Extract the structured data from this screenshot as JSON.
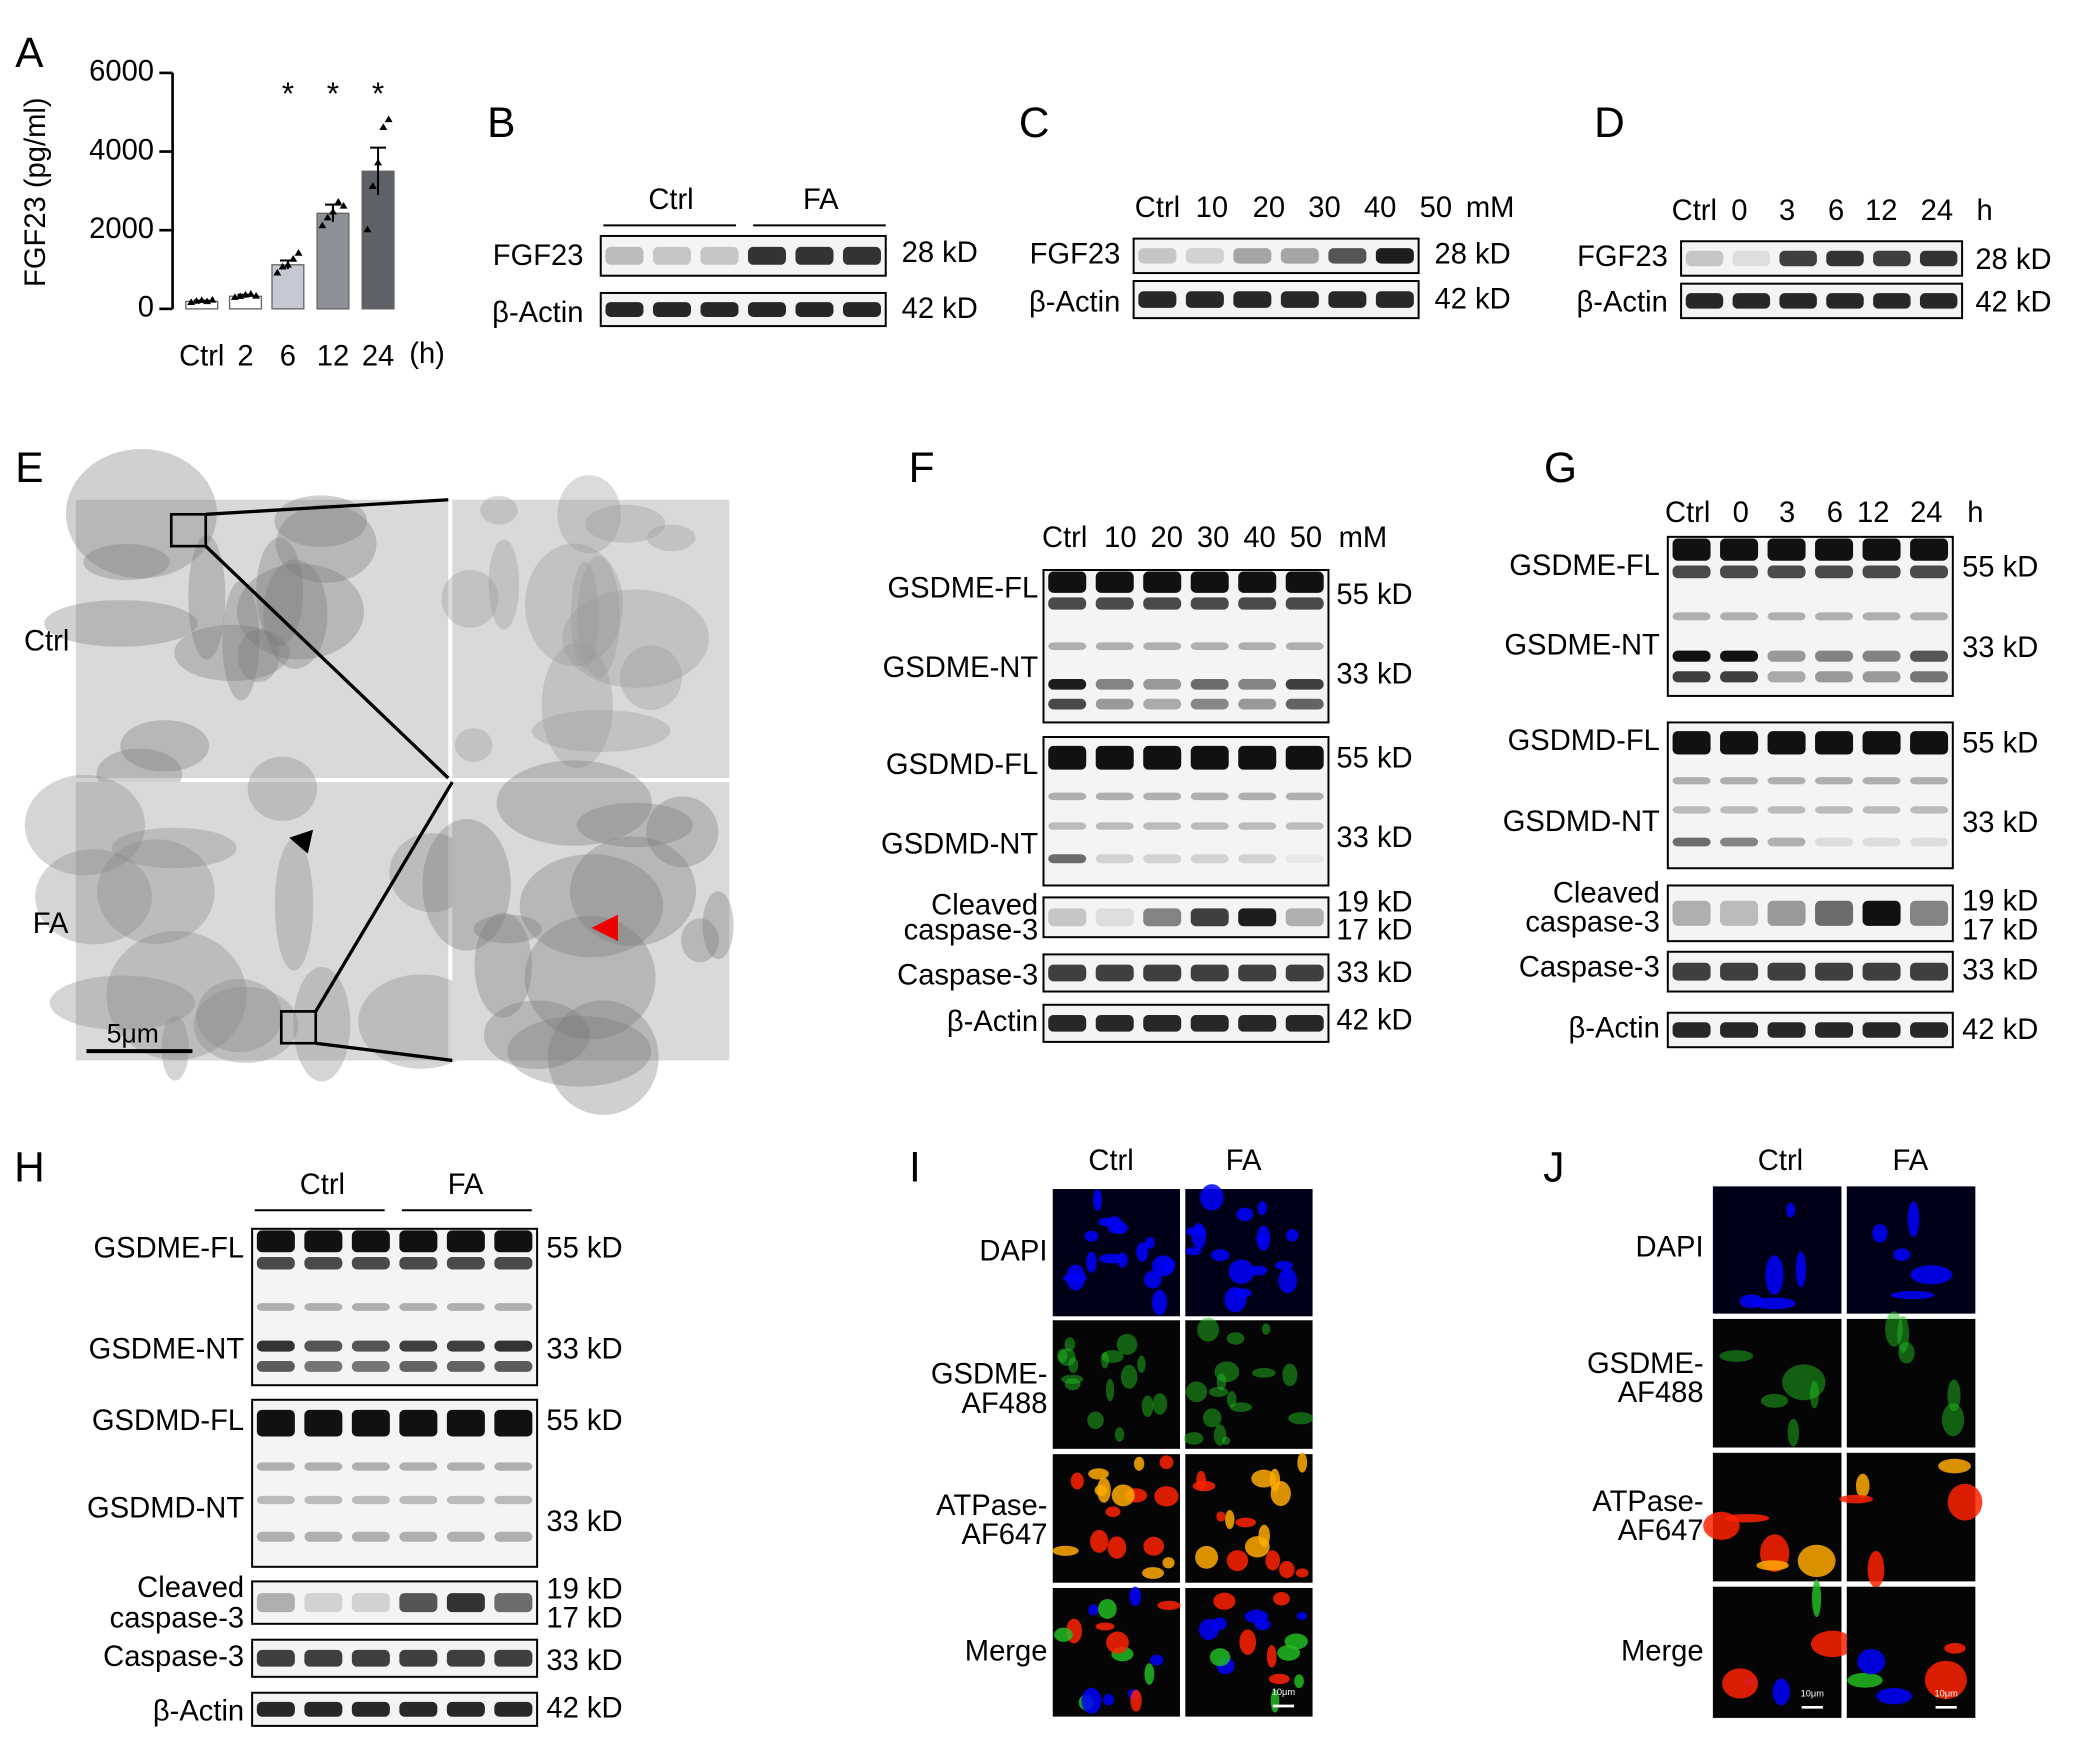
{
  "panel_labels": [
    "A",
    "B",
    "C",
    "D",
    "E",
    "F",
    "G",
    "H",
    "I",
    "J"
  ],
  "chart_data": {
    "type": "bar",
    "y_label": "FGF23 (pg/ml)",
    "x_unit": "(h)",
    "categories": [
      "Ctrl",
      "2",
      "6",
      "12",
      "24"
    ],
    "values": [
      190,
      320,
      1120,
      2430,
      3500
    ],
    "errors": [
      20,
      40,
      110,
      220,
      600
    ],
    "points": [
      [
        150,
        180,
        200,
        170,
        210
      ],
      [
        280,
        300,
        340,
        360,
        310
      ],
      [
        900,
        1050,
        1100,
        1250,
        1400
      ],
      [
        2100,
        2300,
        2450,
        2700,
        2600
      ],
      [
        2000,
        3100,
        3700,
        4600,
        4800
      ]
    ],
    "significance": [
      null,
      null,
      "*",
      "*",
      "*"
    ],
    "colors": [
      "#ffffff",
      "#ffffff",
      "#c6c9d3",
      "#8d9096",
      "#5e6166"
    ],
    "ylim": [
      0,
      6000
    ],
    "yticks": [
      0,
      2000,
      4000,
      6000
    ]
  },
  "panel_B": {
    "groups": [
      "Ctrl",
      "FA"
    ],
    "rows": [
      {
        "label": [
          "FGF23"
        ],
        "sizes": [
          "28 kD"
        ]
      },
      {
        "label": [
          "β-Actin"
        ],
        "sizes": [
          "42 kD"
        ]
      }
    ]
  },
  "panel_C": {
    "lanes": [
      "Ctrl",
      "10",
      "20",
      "30",
      "40",
      "50"
    ],
    "lane_unit": "mM",
    "rows": [
      {
        "label": [
          "FGF23"
        ],
        "sizes": [
          "28 kD"
        ]
      },
      {
        "label": [
          "β-Actin"
        ],
        "sizes": [
          "42 kD"
        ]
      }
    ]
  },
  "panel_D": {
    "lanes": [
      "Ctrl",
      "0",
      "3",
      "6",
      "12",
      "24"
    ],
    "lane_unit": "h",
    "rows": [
      {
        "label": [
          "FGF23"
        ],
        "sizes": [
          "28 kD"
        ]
      },
      {
        "label": [
          "β-Actin"
        ],
        "sizes": [
          "42 kD"
        ]
      }
    ]
  },
  "panel_E": {
    "row_labels": [
      "Ctrl",
      "FA"
    ],
    "scale_bar": "5μm"
  },
  "panel_F": {
    "lanes": [
      "Ctrl",
      "10",
      "20",
      "30",
      "40",
      "50"
    ],
    "lane_unit": "mM",
    "rows": [
      {
        "label": [
          "GSDME-FL"
        ],
        "sizes": [
          "55 kD"
        ]
      },
      {
        "label": [
          "GSDME-NT"
        ],
        "sizes": [
          "33 kD"
        ]
      },
      {
        "label": [
          "GSDMD-FL"
        ],
        "sizes": [
          "55 kD"
        ]
      },
      {
        "label": [
          "GSDMD-NT"
        ],
        "sizes": [
          "33 kD"
        ]
      },
      {
        "label": [
          "Cleaved",
          "caspase-3"
        ],
        "sizes": [
          "19 kD",
          "17 kD"
        ]
      },
      {
        "label": [
          "Caspase-3"
        ],
        "sizes": [
          "33 kD"
        ]
      },
      {
        "label": [
          "β-Actin"
        ],
        "sizes": [
          "42 kD"
        ]
      }
    ]
  },
  "panel_G": {
    "lanes": [
      "Ctrl",
      "0",
      "3",
      "6",
      "12",
      "24"
    ],
    "lane_unit": "h",
    "rows": [
      {
        "label": [
          "GSDME-FL"
        ],
        "sizes": [
          "55 kD"
        ]
      },
      {
        "label": [
          "GSDME-NT"
        ],
        "sizes": [
          "33 kD"
        ]
      },
      {
        "label": [
          "GSDMD-FL"
        ],
        "sizes": [
          "55 kD"
        ]
      },
      {
        "label": [
          "GSDMD-NT"
        ],
        "sizes": [
          "33 kD"
        ]
      },
      {
        "label": [
          "Cleaved",
          "caspase-3"
        ],
        "sizes": [
          "19 kD",
          "17 kD"
        ]
      },
      {
        "label": [
          "Caspase-3"
        ],
        "sizes": [
          "33 kD"
        ]
      },
      {
        "label": [
          "β-Actin"
        ],
        "sizes": [
          "42 kD"
        ]
      }
    ]
  },
  "panel_H": {
    "groups": [
      "Ctrl",
      "FA"
    ],
    "rows": [
      {
        "label": [
          "GSDME-FL"
        ],
        "sizes": [
          "55 kD"
        ]
      },
      {
        "label": [
          "GSDME-NT"
        ],
        "sizes": [
          "33 kD"
        ]
      },
      {
        "label": [
          "GSDMD-FL"
        ],
        "sizes": [
          "55 kD"
        ]
      },
      {
        "label": [
          "GSDMD-NT"
        ],
        "sizes": [
          "33 kD"
        ]
      },
      {
        "label": [
          "Cleaved",
          "caspase-3"
        ],
        "sizes": [
          "19 kD",
          "17 kD"
        ]
      },
      {
        "label": [
          "Caspase-3"
        ],
        "sizes": [
          "33 kD"
        ]
      },
      {
        "label": [
          "β-Actin"
        ],
        "sizes": [
          "42 kD"
        ]
      }
    ]
  },
  "panel_I": {
    "columns": [
      "Ctrl",
      "FA"
    ],
    "rows": [
      [
        "DAPI"
      ],
      [
        "GSDME-",
        "AF488"
      ],
      [
        "ATPase-",
        "AF647"
      ],
      [
        "Merge"
      ]
    ],
    "scale_bar": "10μm"
  },
  "panel_J": {
    "columns": [
      "Ctrl",
      "FA"
    ],
    "rows": [
      [
        "DAPI"
      ],
      [
        "GSDME-",
        "AF488"
      ],
      [
        "ATPase-",
        "AF647"
      ],
      [
        "Merge"
      ]
    ],
    "scale_bar": "10μm"
  }
}
